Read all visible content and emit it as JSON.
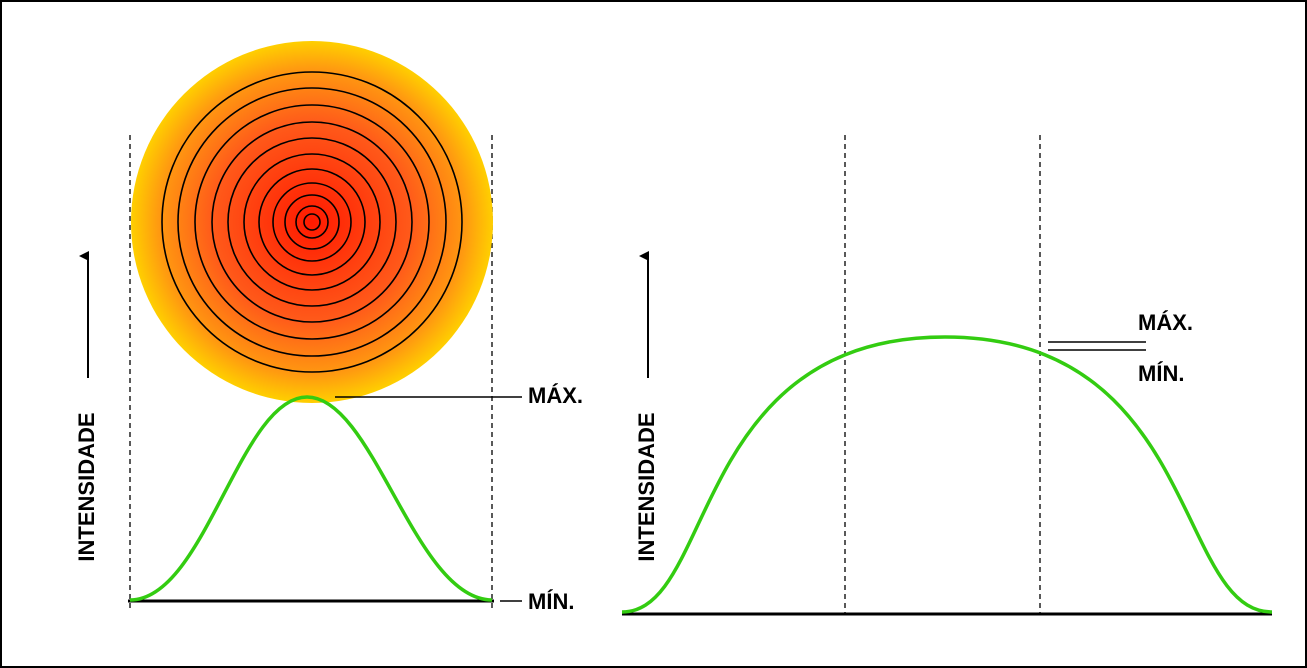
{
  "left_panel": {
    "axis_label": "INTENSIDADE",
    "max_label": "MÁX.",
    "min_label": "MÍN."
  },
  "right_panel": {
    "axis_label": "INTENSIDADE",
    "max_label": "MÁX.",
    "min_label": "MÍN."
  }
}
